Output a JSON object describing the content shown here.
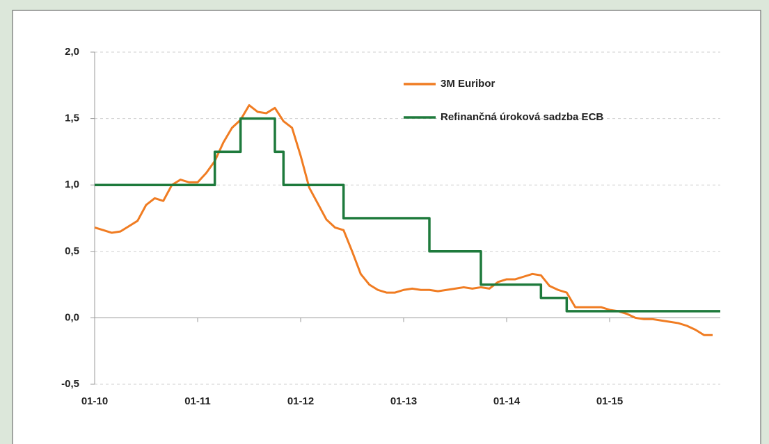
{
  "chart_data": {
    "type": "line",
    "categories": [
      "01-10",
      null,
      null,
      null,
      null,
      null,
      null,
      null,
      null,
      null,
      null,
      null,
      "01-11",
      null,
      null,
      null,
      null,
      null,
      null,
      null,
      null,
      null,
      null,
      null,
      "01-12",
      null,
      null,
      null,
      null,
      null,
      null,
      null,
      null,
      null,
      null,
      null,
      "01-13",
      null,
      null,
      null,
      null,
      null,
      null,
      null,
      null,
      null,
      null,
      null,
      "01-14",
      null,
      null,
      null,
      null,
      null,
      null,
      null,
      null,
      null,
      null,
      null,
      "01-15",
      null,
      null,
      null,
      null,
      null,
      null,
      null,
      null,
      null,
      null,
      null,
      null
    ],
    "series": [
      {
        "name": "3M Euribor",
        "color": "#f07c22",
        "step": false,
        "values": [
          0.68,
          0.66,
          0.64,
          0.65,
          0.69,
          0.73,
          0.85,
          0.9,
          0.88,
          1.0,
          1.04,
          1.02,
          1.02,
          1.09,
          1.18,
          1.32,
          1.43,
          1.49,
          1.6,
          1.55,
          1.54,
          1.58,
          1.48,
          1.43,
          1.22,
          0.98,
          0.86,
          0.74,
          0.68,
          0.66,
          0.5,
          0.33,
          0.25,
          0.21,
          0.19,
          0.19,
          0.21,
          0.22,
          0.21,
          0.21,
          0.2,
          0.21,
          0.22,
          0.23,
          0.22,
          0.23,
          0.22,
          0.27,
          0.29,
          0.29,
          0.31,
          0.33,
          0.32,
          0.24,
          0.21,
          0.19,
          0.08,
          0.08,
          0.08,
          0.08,
          0.06,
          0.05,
          0.03,
          0.0,
          -0.01,
          -0.01,
          -0.02,
          -0.03,
          -0.04,
          -0.06,
          -0.09,
          -0.13,
          -0.13
        ]
      },
      {
        "name": "Refinančná úroková sadzba ECB",
        "color": "#1e7a3c",
        "step": true,
        "values": [
          1.0,
          1.0,
          1.0,
          1.0,
          1.0,
          1.0,
          1.0,
          1.0,
          1.0,
          1.0,
          1.0,
          1.0,
          1.0,
          1.0,
          1.0,
          1.25,
          1.25,
          1.25,
          1.5,
          1.5,
          1.5,
          1.5,
          1.25,
          1.0,
          1.0,
          1.0,
          1.0,
          1.0,
          1.0,
          1.0,
          0.75,
          0.75,
          0.75,
          0.75,
          0.75,
          0.75,
          0.75,
          0.75,
          0.75,
          0.75,
          0.5,
          0.5,
          0.5,
          0.5,
          0.5,
          0.5,
          0.25,
          0.25,
          0.25,
          0.25,
          0.25,
          0.25,
          0.25,
          0.15,
          0.15,
          0.15,
          0.05,
          0.05,
          0.05,
          0.05,
          0.05,
          0.05,
          0.05,
          0.05,
          0.05,
          0.05,
          0.05,
          0.05,
          0.05,
          0.05,
          0.05,
          0.05,
          0.05
        ]
      }
    ],
    "ylim": [
      -0.5,
      2.0
    ],
    "yticks": [
      {
        "value": -0.5,
        "label": "-0,5"
      },
      {
        "value": 0,
        "label": "0,0"
      },
      {
        "value": 0.5,
        "label": "0,5"
      },
      {
        "value": 1.0,
        "label": "1,0"
      },
      {
        "value": 1.5,
        "label": "1,5"
      },
      {
        "value": 2.0,
        "label": "2,0"
      }
    ],
    "grid": true,
    "legend": "top-right"
  }
}
